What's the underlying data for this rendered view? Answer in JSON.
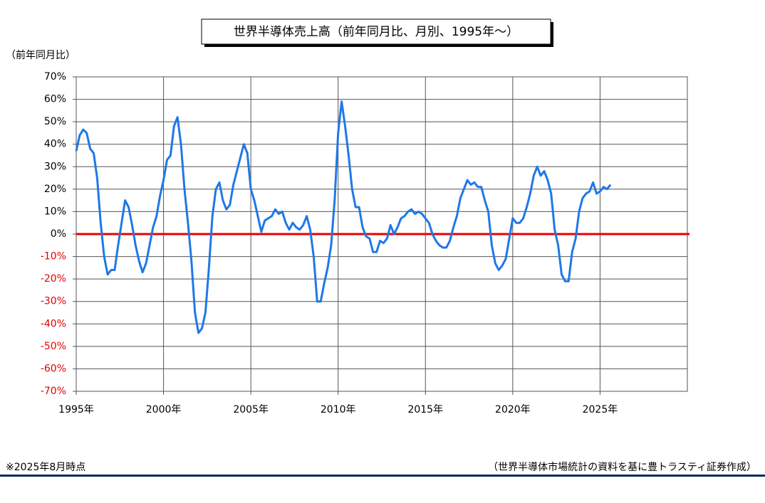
{
  "chart_data": {
    "type": "line",
    "title": "世界半導体売上高（前年同月比、月別、1995年～）",
    "y_label": "（前年同月比）",
    "footnote": "※2025年8月時点",
    "source": "（世界半導体市場統計の資料を基に豊トラスティ証券作成）",
    "xlim": [
      1995,
      2030
    ],
    "xticks": [
      {
        "value": 1995,
        "label": "1995年"
      },
      {
        "value": 2000,
        "label": "2000年"
      },
      {
        "value": 2005,
        "label": "2005年"
      },
      {
        "value": 2010,
        "label": "2010年"
      },
      {
        "value": 2015,
        "label": "2015年"
      },
      {
        "value": 2020,
        "label": "2020年"
      },
      {
        "value": 2025,
        "label": "2025年"
      }
    ],
    "ylim": [
      -70,
      70
    ],
    "yticks": [
      {
        "value": 70,
        "label": "70%"
      },
      {
        "value": 60,
        "label": "60%"
      },
      {
        "value": 50,
        "label": "50%"
      },
      {
        "value": 40,
        "label": "40%"
      },
      {
        "value": 30,
        "label": "30%"
      },
      {
        "value": 20,
        "label": "20%"
      },
      {
        "value": 10,
        "label": "10%"
      },
      {
        "value": 0,
        "label": "0%"
      },
      {
        "value": -10,
        "label": "-10%"
      },
      {
        "value": -20,
        "label": "-20%"
      },
      {
        "value": -30,
        "label": "-30%"
      },
      {
        "value": -40,
        "label": "-40%"
      },
      {
        "value": -50,
        "label": "-50%"
      },
      {
        "value": -60,
        "label": "-60%"
      },
      {
        "value": -70,
        "label": "-70%"
      }
    ],
    "grid": true,
    "zero_line_color": "#e60000",
    "negative_label_color": "#e60000",
    "x": [
      1995.0,
      1995.2,
      1995.4,
      1995.6,
      1995.8,
      1996.0,
      1996.2,
      1996.4,
      1996.6,
      1996.8,
      1997.0,
      1997.2,
      1997.4,
      1997.6,
      1997.8,
      1998.0,
      1998.2,
      1998.4,
      1998.6,
      1998.8,
      1999.0,
      1999.2,
      1999.4,
      1999.6,
      1999.8,
      2000.0,
      2000.2,
      2000.4,
      2000.6,
      2000.8,
      2001.0,
      2001.2,
      2001.4,
      2001.6,
      2001.8,
      2002.0,
      2002.2,
      2002.4,
      2002.6,
      2002.8,
      2003.0,
      2003.2,
      2003.4,
      2003.6,
      2003.8,
      2004.0,
      2004.2,
      2004.4,
      2004.6,
      2004.8,
      2005.0,
      2005.2,
      2005.4,
      2005.6,
      2005.8,
      2006.0,
      2006.2,
      2006.4,
      2006.6,
      2006.8,
      2007.0,
      2007.2,
      2007.4,
      2007.6,
      2007.8,
      2008.0,
      2008.2,
      2008.4,
      2008.6,
      2008.8,
      2009.0,
      2009.2,
      2009.4,
      2009.6,
      2009.8,
      2010.0,
      2010.2,
      2010.4,
      2010.6,
      2010.8,
      2011.0,
      2011.2,
      2011.4,
      2011.6,
      2011.8,
      2012.0,
      2012.2,
      2012.4,
      2012.6,
      2012.8,
      2013.0,
      2013.2,
      2013.4,
      2013.6,
      2013.8,
      2014.0,
      2014.2,
      2014.4,
      2014.6,
      2014.8,
      2015.0,
      2015.2,
      2015.4,
      2015.6,
      2015.8,
      2016.0,
      2016.2,
      2016.4,
      2016.6,
      2016.8,
      2017.0,
      2017.2,
      2017.4,
      2017.6,
      2017.8,
      2018.0,
      2018.2,
      2018.4,
      2018.6,
      2018.8,
      2019.0,
      2019.2,
      2019.4,
      2019.6,
      2019.8,
      2020.0,
      2020.2,
      2020.4,
      2020.6,
      2020.8,
      2021.0,
      2021.2,
      2021.4,
      2021.6,
      2021.8,
      2022.0,
      2022.2,
      2022.4,
      2022.6,
      2022.8,
      2023.0,
      2023.2,
      2023.4,
      2023.6,
      2023.8,
      2024.0,
      2024.2,
      2024.4,
      2024.6,
      2024.8,
      2025.0,
      2025.2,
      2025.4,
      2025.6
    ],
    "series": [
      {
        "color": "#1f78e6",
        "values": [
          37,
          44,
          46.5,
          45,
          38,
          36,
          25,
          5,
          -10,
          -18,
          -16,
          -16,
          -5,
          5,
          15,
          12,
          4,
          -5,
          -12,
          -17,
          -13,
          -5,
          3,
          8,
          17,
          24,
          33,
          35,
          48,
          52,
          40,
          20,
          5,
          -12,
          -35,
          -44,
          -42,
          -35,
          -15,
          8,
          20,
          23,
          15,
          11,
          13,
          22,
          28,
          34,
          40,
          36,
          20,
          15,
          8,
          1,
          6,
          7,
          8,
          11,
          9,
          10,
          5,
          2,
          5,
          3,
          2,
          4,
          8,
          2,
          -10,
          -30,
          -30,
          -22,
          -15,
          -5,
          15,
          45,
          59,
          48,
          35,
          20,
          12,
          12,
          3,
          -1,
          -2,
          -8,
          -8,
          -3,
          -4,
          -2,
          4,
          0,
          3,
          7,
          8,
          10,
          11,
          9,
          10,
          9,
          7,
          5,
          0,
          -3,
          -5,
          -6,
          -6,
          -3,
          3,
          8,
          16,
          20,
          24,
          22,
          23,
          21,
          21,
          15,
          10,
          -5,
          -13,
          -16,
          -14,
          -11,
          -2,
          7,
          5,
          5,
          7,
          12,
          18,
          26,
          30,
          26,
          28,
          24,
          18,
          2,
          -5,
          -18,
          -21,
          -21,
          -8,
          -2,
          10,
          16,
          18,
          19,
          23,
          18,
          19,
          21,
          20,
          22
        ]
      }
    ]
  }
}
